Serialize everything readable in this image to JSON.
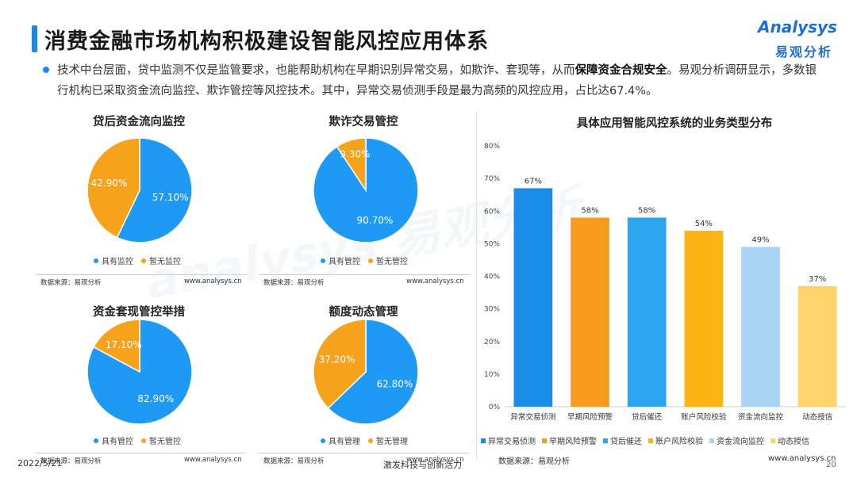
{
  "header": {
    "title": "消费金融市场机构积极建设智能风控应用体系",
    "logo_en": "Analysys",
    "logo_cn": "易观分析"
  },
  "intro": {
    "text_before": "技术中台层面，贷中监测不仅是监管要求，也能帮助机构在早期识别异常交易，如欺诈、套现等，从而",
    "text_bold": "保障资金合规安全",
    "text_after": "。易观分析调研显示，多数银行机构已采取资金流向监控、欺诈管控等风控技术。其中，异常交易侦测手段是最为高频的风控应用，占比达67.4%。"
  },
  "colors": {
    "blue": "#1e9af5",
    "orange": "#f7a21b"
  },
  "chart_data": [
    {
      "type": "pie",
      "title": "贷后资金流向监控",
      "slices": [
        {
          "name": "具有监控",
          "value": 57.1,
          "label": "57.10%"
        },
        {
          "name": "暂无监控",
          "value": 42.9,
          "label": "42.90%"
        }
      ],
      "source": "数据来源：易观分析",
      "url": "www.analysys.cn"
    },
    {
      "type": "pie",
      "title": "欺诈交易管控",
      "slices": [
        {
          "name": "具有管控",
          "value": 90.7,
          "label": "90.70%"
        },
        {
          "name": "暂无管控",
          "value": 9.3,
          "label": "9.30%"
        }
      ],
      "source": "数据来源：易观分析",
      "url": "www.analysys.cn"
    },
    {
      "type": "pie",
      "title": "资金套现管控举措",
      "slices": [
        {
          "name": "具有管控",
          "value": 82.9,
          "label": "82.90%"
        },
        {
          "name": "暂无管控",
          "value": 17.1,
          "label": "17.10%"
        }
      ],
      "source": "数据来源：易观分析",
      "url": "www.analysys.cn"
    },
    {
      "type": "pie",
      "title": "额度动态管理",
      "slices": [
        {
          "name": "具有管理",
          "value": 62.8,
          "label": "62.80%"
        },
        {
          "name": "暂无管理",
          "value": 37.2,
          "label": "37.20%"
        }
      ],
      "source": "数据来源：易观分析",
      "url": "www.analysys.cn"
    },
    {
      "type": "bar",
      "title": "具体应用智能风控系统的业务类型分布",
      "categories": [
        "异常交易侦测",
        "早期风险预警",
        "贷后催还",
        "账户风险校验",
        "资金流向监控",
        "动态授信"
      ],
      "values": [
        67,
        58,
        58,
        54,
        49,
        37
      ],
      "labels": [
        "67%",
        "58%",
        "58%",
        "54%",
        "49%",
        "37%"
      ],
      "colors": [
        "#1a8ce6",
        "#f79a1e",
        "#2aa5ee",
        "#fdb515",
        "#a9d3f2",
        "#fdd36a"
      ],
      "yticks": [
        "0%",
        "10%",
        "20%",
        "30%",
        "40%",
        "50%",
        "60%",
        "70%",
        "80%"
      ],
      "ylim": [
        0,
        80
      ],
      "legend": "bottom",
      "source": "数据来源：易观分析",
      "url": "www.analysys.cn"
    }
  ],
  "footer": {
    "date": "2022/5/21",
    "slogan": "激发科技与创新活力",
    "page": "20"
  },
  "watermark": "analysys 易观分析"
}
